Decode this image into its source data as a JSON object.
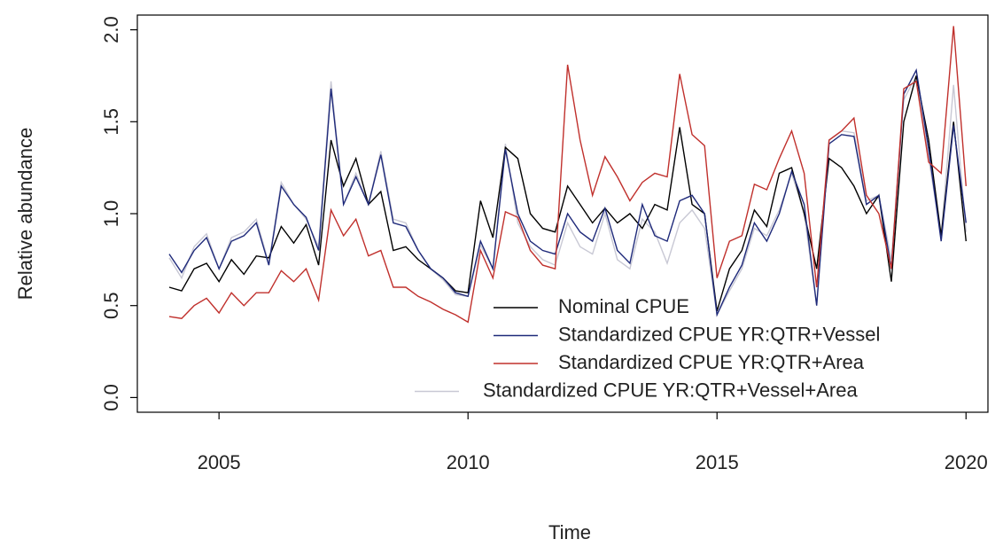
{
  "chart_data": {
    "type": "line",
    "x_label": "Time",
    "y_label": "Relative abundance",
    "x": [
      2004,
      2004.25,
      2004.5,
      2004.75,
      2005,
      2005.25,
      2005.5,
      2005.75,
      2006,
      2006.25,
      2006.5,
      2006.75,
      2007,
      2007.25,
      2007.5,
      2007.75,
      2008,
      2008.25,
      2008.5,
      2008.75,
      2009,
      2009.25,
      2009.5,
      2009.75,
      2010,
      2010.25,
      2010.5,
      2010.75,
      2011,
      2011.25,
      2011.5,
      2011.75,
      2012,
      2012.25,
      2012.5,
      2012.75,
      2013,
      2013.25,
      2013.5,
      2013.75,
      2014,
      2014.25,
      2014.5,
      2014.75,
      2015,
      2015.25,
      2015.5,
      2015.75,
      2016,
      2016.25,
      2016.5,
      2016.75,
      2017,
      2017.25,
      2017.5,
      2017.75,
      2018,
      2018.25,
      2018.5,
      2018.75,
      2019,
      2019.25,
      2019.5,
      2019.75,
      2020
    ],
    "series": [
      {
        "name": "Nominal CPUE",
        "color": "#000000",
        "values": [
          0.6,
          0.58,
          0.7,
          0.73,
          0.63,
          0.75,
          0.67,
          0.77,
          0.76,
          0.93,
          0.84,
          0.94,
          0.72,
          1.4,
          1.15,
          1.3,
          1.05,
          1.12,
          0.8,
          0.82,
          0.75,
          0.7,
          0.65,
          0.58,
          0.57,
          1.07,
          0.87,
          1.36,
          1.3,
          1.0,
          0.92,
          0.9,
          1.15,
          1.05,
          0.95,
          1.03,
          0.95,
          1.0,
          0.92,
          1.05,
          1.02,
          1.47,
          1.05,
          1.0,
          0.47,
          0.7,
          0.8,
          1.02,
          0.93,
          1.22,
          1.25,
          1.0,
          0.7,
          1.3,
          1.25,
          1.15,
          1.0,
          1.1,
          0.63,
          1.5,
          1.75,
          1.4,
          0.88,
          1.5,
          0.85
        ]
      },
      {
        "name": "Standardized CPUE YR:QTR+Vessel",
        "color": "#1f2a7a",
        "values": [
          0.78,
          0.68,
          0.8,
          0.87,
          0.7,
          0.85,
          0.88,
          0.95,
          0.72,
          1.15,
          1.05,
          0.98,
          0.8,
          1.68,
          1.05,
          1.2,
          1.05,
          1.32,
          0.95,
          0.93,
          0.8,
          0.7,
          0.65,
          0.57,
          0.55,
          0.85,
          0.7,
          1.35,
          1.0,
          0.85,
          0.8,
          0.78,
          1.0,
          0.9,
          0.85,
          1.03,
          0.8,
          0.73,
          1.05,
          0.88,
          0.85,
          1.07,
          1.1,
          1.0,
          0.45,
          0.6,
          0.72,
          0.95,
          0.85,
          1.0,
          1.23,
          1.05,
          0.5,
          1.38,
          1.43,
          1.42,
          1.05,
          1.1,
          0.7,
          1.65,
          1.78,
          1.35,
          0.85,
          1.48,
          0.95
        ]
      },
      {
        "name": "Standardized CPUE YR:QTR+Area",
        "color": "#c0302c",
        "values": [
          0.44,
          0.43,
          0.5,
          0.54,
          0.46,
          0.57,
          0.5,
          0.57,
          0.57,
          0.69,
          0.63,
          0.7,
          0.53,
          1.02,
          0.88,
          0.97,
          0.77,
          0.8,
          0.6,
          0.6,
          0.55,
          0.52,
          0.48,
          0.45,
          0.41,
          0.8,
          0.65,
          1.01,
          0.98,
          0.8,
          0.72,
          0.7,
          1.81,
          1.4,
          1.1,
          1.31,
          1.2,
          1.07,
          1.17,
          1.22,
          1.2,
          1.76,
          1.43,
          1.37,
          0.65,
          0.85,
          0.88,
          1.16,
          1.13,
          1.3,
          1.45,
          1.22,
          0.6,
          1.4,
          1.45,
          1.52,
          1.1,
          1.0,
          0.7,
          1.68,
          1.72,
          1.28,
          1.22,
          2.02,
          1.15
        ]
      },
      {
        "name": "Standardized CPUE YR:QTR+Vessel+Area",
        "color": "#c8c8d4",
        "values": [
          0.76,
          0.65,
          0.82,
          0.89,
          0.7,
          0.87,
          0.9,
          0.97,
          0.73,
          1.17,
          1.05,
          0.97,
          0.82,
          1.72,
          1.05,
          1.22,
          1.05,
          1.34,
          0.97,
          0.95,
          0.8,
          0.7,
          0.64,
          0.56,
          0.55,
          0.83,
          0.7,
          1.38,
          0.95,
          0.82,
          0.75,
          0.72,
          0.95,
          0.82,
          0.78,
          1.0,
          0.75,
          0.7,
          0.97,
          0.9,
          0.73,
          0.95,
          1.02,
          0.92,
          0.45,
          0.58,
          0.7,
          0.92,
          0.88,
          1.02,
          1.22,
          1.0,
          0.5,
          1.4,
          1.45,
          1.44,
          1.07,
          1.1,
          0.75,
          1.62,
          1.75,
          1.3,
          0.88,
          1.7,
          0.9
        ]
      }
    ],
    "xlim": [
      2003.36,
      2020.44
    ],
    "ylim": [
      -0.08,
      2.08
    ],
    "xticks": [
      2005,
      2010,
      2015,
      2020
    ],
    "yticks": [
      {
        "value": 0,
        "label": "0.0"
      },
      {
        "value": 0.5,
        "label": "0.5"
      },
      {
        "value": 1,
        "label": "1.0"
      },
      {
        "value": 1.5,
        "label": "1.5"
      },
      {
        "value": 2,
        "label": "2.0"
      }
    ],
    "legend": "bottom-right"
  }
}
